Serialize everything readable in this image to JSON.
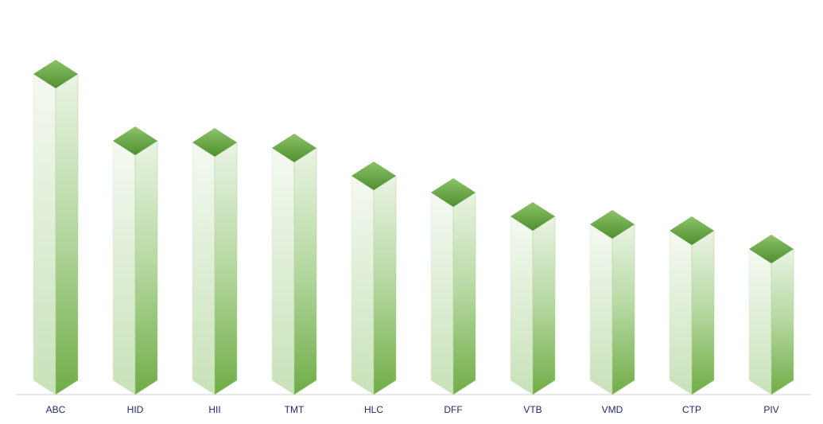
{
  "chart_data": {
    "type": "bar3d",
    "categories": [
      "ABC",
      "HID",
      "HII",
      "TMT",
      "HLC",
      "DFF",
      "VTB",
      "VMD",
      "CTP",
      "PIV"
    ],
    "values": [
      403,
      319,
      317,
      310,
      275,
      254,
      224,
      214,
      206,
      183
    ],
    "color": "#70ad47",
    "ylim": [
      0,
      450
    ]
  }
}
